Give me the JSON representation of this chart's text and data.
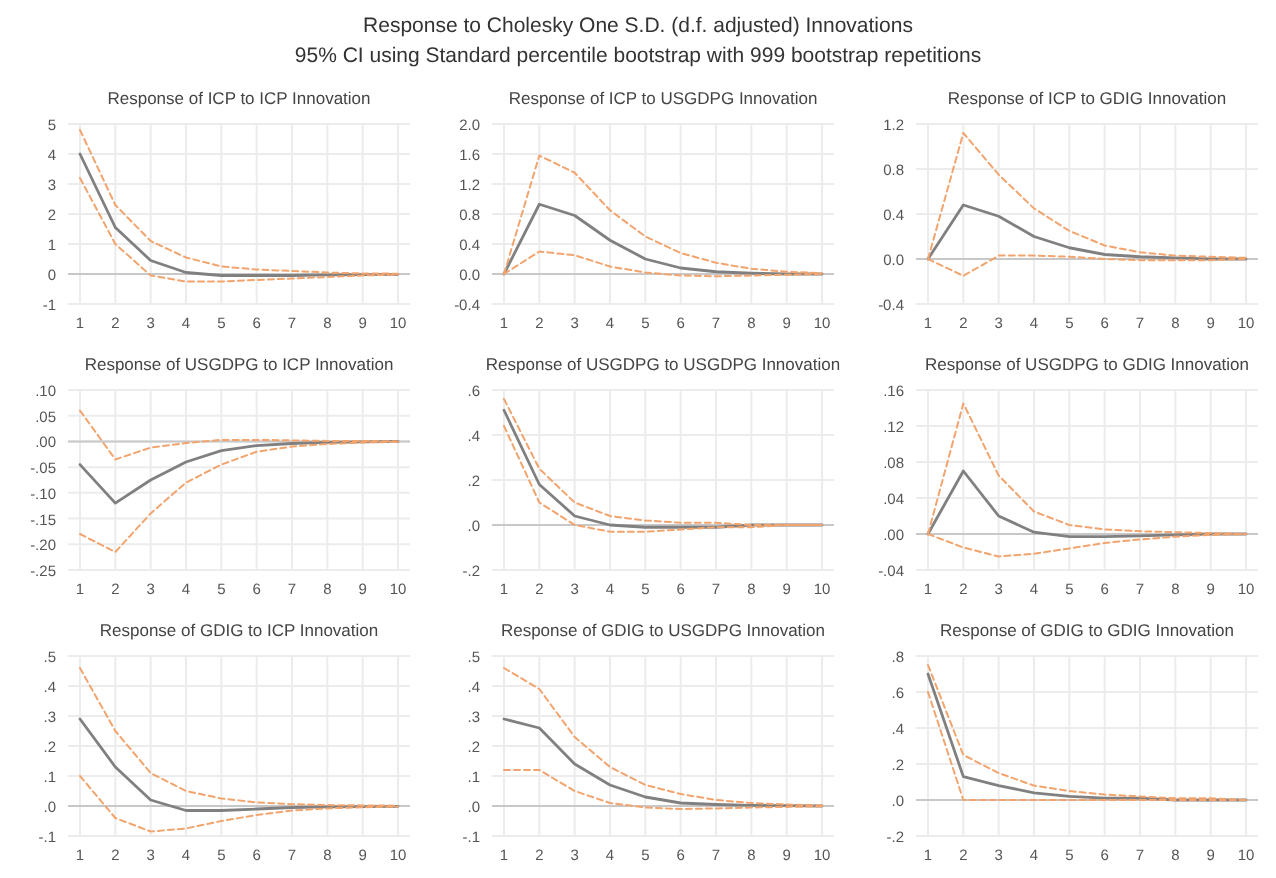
{
  "chart_data": [
    {
      "type": "other",
      "title": "Response to Cholesky One S.D. (d.f. adjusted) Innovations",
      "subtitle": "95% CI using Standard percentile bootstrap with 999 bootstrap repetitions"
    },
    {
      "type": "line",
      "title": "Response of ICP to ICP Innovation",
      "categories": [
        "1",
        "2",
        "3",
        "4",
        "5",
        "6",
        "7",
        "8",
        "9",
        "10"
      ],
      "ylim": [
        -1,
        5
      ],
      "yticks": [
        -1,
        0,
        1,
        2,
        3,
        4,
        5
      ],
      "grid": true,
      "ref_lines": [
        {
          "axis": "y",
          "value": 0,
          "color": "#c8c8c8"
        }
      ],
      "series": [
        {
          "color": "#808080",
          "line_style": "solid",
          "values": [
            4.0,
            1.55,
            0.45,
            0.05,
            -0.05,
            -0.05,
            -0.05,
            -0.03,
            -0.02,
            -0.01
          ]
        },
        {
          "color": "#f2a46e",
          "line_style": "dashed",
          "values": [
            4.8,
            2.3,
            1.1,
            0.55,
            0.25,
            0.15,
            0.1,
            0.05,
            0.02,
            0.01
          ]
        },
        {
          "color": "#f2a46e",
          "line_style": "dashed",
          "values": [
            3.2,
            1.0,
            -0.05,
            -0.25,
            -0.25,
            -0.2,
            -0.15,
            -0.1,
            -0.05,
            -0.02
          ]
        }
      ]
    },
    {
      "type": "line",
      "title": "Response of ICP to USGDPG Innovation",
      "categories": [
        "1",
        "2",
        "3",
        "4",
        "5",
        "6",
        "7",
        "8",
        "9",
        "10"
      ],
      "ylim": [
        -0.4,
        2.0
      ],
      "yticks": [
        -0.4,
        {
          "value": 0,
          "label": "0.0"
        },
        0.4,
        0.8,
        1.2,
        1.6,
        {
          "value": 2,
          "label": "2.0"
        }
      ],
      "grid": true,
      "ref_lines": [
        {
          "axis": "y",
          "value": 0,
          "color": "#c8c8c8"
        }
      ],
      "series": [
        {
          "color": "#808080",
          "line_style": "solid",
          "values": [
            0,
            0.93,
            0.78,
            0.45,
            0.2,
            0.08,
            0.03,
            0.01,
            0,
            0
          ]
        },
        {
          "color": "#f2a46e",
          "line_style": "dashed",
          "values": [
            0,
            1.58,
            1.35,
            0.85,
            0.5,
            0.28,
            0.15,
            0.07,
            0.03,
            0.01
          ]
        },
        {
          "color": "#f2a46e",
          "line_style": "dashed",
          "values": [
            0,
            0.3,
            0.25,
            0.1,
            0.02,
            -0.02,
            -0.03,
            -0.02,
            -0.01,
            0
          ]
        }
      ]
    },
    {
      "type": "line",
      "title": "Response of ICP to GDIG Innovation",
      "categories": [
        "1",
        "2",
        "3",
        "4",
        "5",
        "6",
        "7",
        "8",
        "9",
        "10"
      ],
      "ylim": [
        -0.4,
        1.2
      ],
      "yticks": [
        -0.4,
        {
          "value": 0,
          "label": "0.0"
        },
        0.4,
        0.8,
        1.2
      ],
      "grid": true,
      "ref_lines": [
        {
          "axis": "y",
          "value": 0,
          "color": "#c8c8c8"
        }
      ],
      "series": [
        {
          "color": "#808080",
          "line_style": "solid",
          "values": [
            0,
            0.48,
            0.38,
            0.2,
            0.1,
            0.04,
            0.02,
            0.01,
            0,
            0
          ]
        },
        {
          "color": "#f2a46e",
          "line_style": "dashed",
          "values": [
            0,
            1.12,
            0.75,
            0.45,
            0.25,
            0.12,
            0.06,
            0.03,
            0.02,
            0.01
          ]
        },
        {
          "color": "#f2a46e",
          "line_style": "dashed",
          "values": [
            0,
            -0.15,
            0.03,
            0.03,
            0.02,
            0,
            -0.01,
            -0.01,
            -0.01,
            0
          ]
        }
      ]
    },
    {
      "type": "line",
      "title": "Response of USGDPG to ICP Innovation",
      "categories": [
        "1",
        "2",
        "3",
        "4",
        "5",
        "6",
        "7",
        "8",
        "9",
        "10"
      ],
      "ylim": [
        -0.25,
        0.1
      ],
      "yticks": [
        {
          "value": -0.25,
          "label": "-.25"
        },
        {
          "value": -0.2,
          "label": "-.20"
        },
        {
          "value": -0.15,
          "label": "-.15"
        },
        {
          "value": -0.1,
          "label": "-.10"
        },
        {
          "value": -0.05,
          "label": "-.05"
        },
        {
          "value": 0,
          "label": ".00"
        },
        {
          "value": 0.05,
          "label": ".05"
        },
        {
          "value": 0.1,
          "label": ".10"
        }
      ],
      "grid": true,
      "ref_lines": [
        {
          "axis": "y",
          "value": 0,
          "color": "#c8c8c8"
        }
      ],
      "series": [
        {
          "color": "#808080",
          "line_style": "solid",
          "values": [
            -0.045,
            -0.12,
            -0.075,
            -0.04,
            -0.018,
            -0.008,
            -0.004,
            -0.002,
            -0.001,
            0
          ]
        },
        {
          "color": "#f2a46e",
          "line_style": "dashed",
          "values": [
            0.06,
            -0.035,
            -0.012,
            -0.003,
            0.003,
            0.003,
            0.002,
            0.001,
            0.001,
            0
          ]
        },
        {
          "color": "#f2a46e",
          "line_style": "dashed",
          "values": [
            -0.18,
            -0.215,
            -0.14,
            -0.08,
            -0.045,
            -0.02,
            -0.01,
            -0.005,
            -0.002,
            -0.001
          ]
        }
      ]
    },
    {
      "type": "line",
      "title": "Response of USGDPG to USGDPG Innovation",
      "categories": [
        "1",
        "2",
        "3",
        "4",
        "5",
        "6",
        "7",
        "8",
        "9",
        "10"
      ],
      "ylim": [
        -0.2,
        0.6
      ],
      "yticks": [
        {
          "value": -0.2,
          "label": "-.2"
        },
        {
          "value": 0,
          "label": ".0"
        },
        {
          "value": 0.2,
          "label": ".2"
        },
        {
          "value": 0.4,
          "label": ".4"
        },
        {
          "value": 0.6,
          "label": ".6"
        }
      ],
      "grid": true,
      "ref_lines": [
        {
          "axis": "y",
          "value": 0,
          "color": "#c8c8c8"
        }
      ],
      "series": [
        {
          "color": "#808080",
          "line_style": "solid",
          "values": [
            0.51,
            0.18,
            0.04,
            0,
            -0.01,
            -0.01,
            -0.01,
            0,
            0,
            0
          ]
        },
        {
          "color": "#f2a46e",
          "line_style": "dashed",
          "values": [
            0.56,
            0.25,
            0.1,
            0.04,
            0.02,
            0.01,
            0.01,
            0,
            0,
            0
          ]
        },
        {
          "color": "#f2a46e",
          "line_style": "dashed",
          "values": [
            0.44,
            0.1,
            0,
            -0.03,
            -0.03,
            -0.02,
            -0.01,
            -0.01,
            0,
            0
          ]
        }
      ]
    },
    {
      "type": "line",
      "title": "Response of USGDPG to GDIG Innovation",
      "categories": [
        "1",
        "2",
        "3",
        "4",
        "5",
        "6",
        "7",
        "8",
        "9",
        "10"
      ],
      "ylim": [
        -0.04,
        0.16
      ],
      "yticks": [
        {
          "value": -0.04,
          "label": "-.04"
        },
        {
          "value": 0,
          "label": ".00"
        },
        {
          "value": 0.04,
          "label": ".04"
        },
        {
          "value": 0.08,
          "label": ".08"
        },
        {
          "value": 0.12,
          "label": ".12"
        },
        {
          "value": 0.16,
          "label": ".16"
        }
      ],
      "grid": true,
      "ref_lines": [
        {
          "axis": "y",
          "value": 0,
          "color": "#c8c8c8"
        }
      ],
      "series": [
        {
          "color": "#808080",
          "line_style": "solid",
          "values": [
            0,
            0.07,
            0.02,
            0.002,
            -0.003,
            -0.003,
            -0.002,
            -0.001,
            0,
            0
          ]
        },
        {
          "color": "#f2a46e",
          "line_style": "dashed",
          "values": [
            0,
            0.145,
            0.065,
            0.025,
            0.01,
            0.005,
            0.003,
            0.002,
            0.001,
            0
          ]
        },
        {
          "color": "#f2a46e",
          "line_style": "dashed",
          "values": [
            0,
            -0.015,
            -0.025,
            -0.022,
            -0.016,
            -0.01,
            -0.006,
            -0.003,
            -0.001,
            0
          ]
        }
      ]
    },
    {
      "type": "line",
      "title": "Response of GDIG to ICP Innovation",
      "categories": [
        "1",
        "2",
        "3",
        "4",
        "5",
        "6",
        "7",
        "8",
        "9",
        "10"
      ],
      "ylim": [
        -0.1,
        0.5
      ],
      "yticks": [
        {
          "value": -0.1,
          "label": "-.1"
        },
        {
          "value": 0,
          "label": ".0"
        },
        {
          "value": 0.1,
          "label": ".1"
        },
        {
          "value": 0.2,
          "label": ".2"
        },
        {
          "value": 0.3,
          "label": ".3"
        },
        {
          "value": 0.4,
          "label": ".4"
        },
        {
          "value": 0.5,
          "label": ".5"
        }
      ],
      "grid": true,
      "ref_lines": [
        {
          "axis": "y",
          "value": 0,
          "color": "#c8c8c8"
        }
      ],
      "series": [
        {
          "color": "#808080",
          "line_style": "solid",
          "values": [
            0.29,
            0.13,
            0.02,
            -0.015,
            -0.015,
            -0.01,
            -0.005,
            -0.003,
            -0.002,
            -0.001
          ]
        },
        {
          "color": "#f2a46e",
          "line_style": "dashed",
          "values": [
            0.46,
            0.25,
            0.11,
            0.05,
            0.025,
            0.012,
            0.006,
            0.003,
            0.002,
            0.001
          ]
        },
        {
          "color": "#f2a46e",
          "line_style": "dashed",
          "values": [
            0.1,
            -0.04,
            -0.085,
            -0.075,
            -0.05,
            -0.03,
            -0.015,
            -0.008,
            -0.004,
            -0.002
          ]
        }
      ]
    },
    {
      "type": "line",
      "title": "Response of GDIG to USGDPG Innovation",
      "categories": [
        "1",
        "2",
        "3",
        "4",
        "5",
        "6",
        "7",
        "8",
        "9",
        "10"
      ],
      "ylim": [
        -0.1,
        0.5
      ],
      "yticks": [
        {
          "value": -0.1,
          "label": "-.1"
        },
        {
          "value": 0,
          "label": ".0"
        },
        {
          "value": 0.1,
          "label": ".1"
        },
        {
          "value": 0.2,
          "label": ".2"
        },
        {
          "value": 0.3,
          "label": ".3"
        },
        {
          "value": 0.4,
          "label": ".4"
        },
        {
          "value": 0.5,
          "label": ".5"
        }
      ],
      "grid": true,
      "ref_lines": [
        {
          "axis": "y",
          "value": 0,
          "color": "#c8c8c8"
        }
      ],
      "series": [
        {
          "color": "#808080",
          "line_style": "solid",
          "values": [
            0.29,
            0.26,
            0.14,
            0.07,
            0.03,
            0.01,
            0.005,
            0.002,
            0.001,
            0
          ]
        },
        {
          "color": "#f2a46e",
          "line_style": "dashed",
          "values": [
            0.46,
            0.39,
            0.23,
            0.13,
            0.07,
            0.04,
            0.02,
            0.01,
            0.005,
            0.002
          ]
        },
        {
          "color": "#f2a46e",
          "line_style": "dashed",
          "values": [
            0.12,
            0.12,
            0.05,
            0.01,
            -0.005,
            -0.01,
            -0.008,
            -0.005,
            -0.003,
            -0.001
          ]
        }
      ]
    },
    {
      "type": "line",
      "title": "Response of GDIG to GDIG Innovation",
      "categories": [
        "1",
        "2",
        "3",
        "4",
        "5",
        "6",
        "7",
        "8",
        "9",
        "10"
      ],
      "ylim": [
        -0.2,
        0.8
      ],
      "yticks": [
        {
          "value": -0.2,
          "label": "-.2"
        },
        {
          "value": 0,
          "label": ".0"
        },
        {
          "value": 0.2,
          "label": ".2"
        },
        {
          "value": 0.4,
          "label": ".4"
        },
        {
          "value": 0.6,
          "label": ".6"
        },
        {
          "value": 0.8,
          "label": ".8"
        }
      ],
      "grid": true,
      "ref_lines": [
        {
          "axis": "y",
          "value": 0,
          "color": "#c8c8c8"
        }
      ],
      "series": [
        {
          "color": "#808080",
          "line_style": "solid",
          "values": [
            0.7,
            0.13,
            0.08,
            0.04,
            0.02,
            0.01,
            0.01,
            0,
            0,
            0
          ]
        },
        {
          "color": "#f2a46e",
          "line_style": "dashed",
          "values": [
            0.75,
            0.25,
            0.15,
            0.08,
            0.05,
            0.03,
            0.02,
            0.01,
            0.01,
            0
          ]
        },
        {
          "color": "#f2a46e",
          "line_style": "dashed",
          "values": [
            0.6,
            0,
            0,
            0,
            0,
            0,
            0,
            0,
            0,
            0
          ]
        }
      ]
    }
  ]
}
